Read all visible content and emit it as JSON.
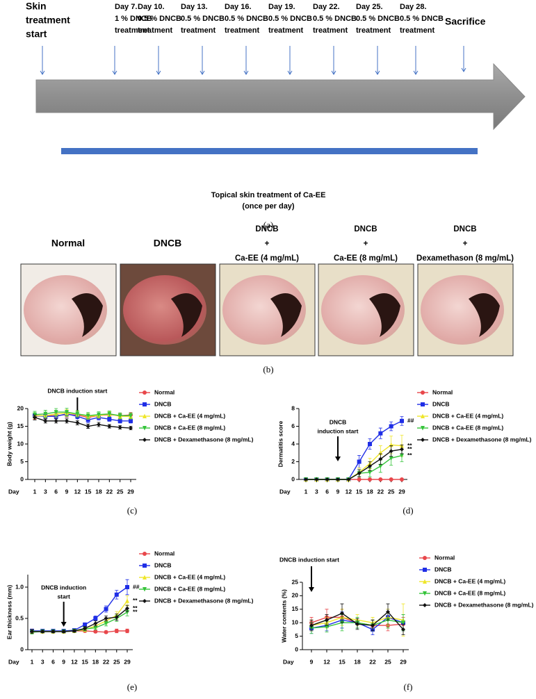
{
  "timeline": {
    "steps": [
      {
        "lines": [
          "Skin",
          "treatment",
          "start"
        ]
      },
      {
        "lines": [
          "Day 7.",
          "1 % DNCB",
          "treatment"
        ]
      },
      {
        "lines": [
          "Day 10.",
          "0.5 % DNCB",
          "treatment"
        ]
      },
      {
        "lines": [
          "Day 13.",
          "0.5 % DNCB",
          "treatment"
        ]
      },
      {
        "lines": [
          "Day 16.",
          "0.5 % DNCB",
          "treatment"
        ]
      },
      {
        "lines": [
          "Day 19.",
          "0.5 % DNCB",
          "treatment"
        ]
      },
      {
        "lines": [
          "Day 22.",
          "0.5 % DNCB",
          "treatment"
        ]
      },
      {
        "lines": [
          "Day 25.",
          "0.5 % DNCB",
          "treatment"
        ]
      },
      {
        "lines": [
          "Day 28.",
          "0.5 % DNCB",
          "treatment"
        ]
      },
      {
        "lines": [
          "Sacrifice"
        ]
      }
    ],
    "bar_label": [
      "Topical skin treatment of Ca-EE",
      "(once per day)"
    ],
    "caption": "(a)"
  },
  "photos": {
    "items": [
      {
        "lines": [
          "Normal"
        ]
      },
      {
        "lines": [
          "DNCB"
        ]
      },
      {
        "lines": [
          "DNCB",
          "+",
          "Ca-EE (4 mg/mL)"
        ]
      },
      {
        "lines": [
          "DNCB",
          "+",
          "Ca-EE (8 mg/mL)"
        ]
      },
      {
        "lines": [
          "DNCB",
          "+",
          "Dexamethason (8 mg/mL)"
        ]
      }
    ],
    "caption": "(b)"
  },
  "chart_data": [
    {
      "type": "line",
      "caption": "(c)",
      "ylabel": "Body weight (g)",
      "xlabel": "Day",
      "annotation": [
        "DNCB induction start"
      ],
      "categories": [
        "1",
        "3",
        "6",
        "9",
        "12",
        "15",
        "18",
        "22",
        "25",
        "29"
      ],
      "ylim": [
        0,
        20
      ],
      "yticks": [
        0,
        5,
        10,
        15,
        20
      ],
      "legend": "right",
      "series": [
        {
          "name": "Normal",
          "color": "#e8474b",
          "marker": "circle",
          "values": [
            17.8,
            18,
            18,
            18.3,
            18.2,
            17.5,
            18,
            18.3,
            18,
            18.2
          ],
          "errors": [
            0.8,
            0.6,
            0.7,
            0.8,
            0.7,
            0.6,
            0.7,
            0.6,
            0.6,
            0.7
          ]
        },
        {
          "name": "DNCB",
          "color": "#1f2ee6",
          "marker": "square",
          "values": [
            18,
            17.8,
            17.8,
            18.5,
            17.8,
            16.8,
            17.5,
            17,
            16.5,
            16.5
          ],
          "errors": [
            0.7,
            0.8,
            0.7,
            0.9,
            0.7,
            0.8,
            0.7,
            0.6,
            0.6,
            0.6
          ]
        },
        {
          "name": "DNCB + Ca-EE (4 mg/mL)",
          "color": "#efe62a",
          "marker": "triangle",
          "values": [
            18,
            18,
            18.5,
            18.7,
            18.5,
            17.8,
            18,
            18.5,
            17.8,
            17.8
          ],
          "errors": [
            0.8,
            0.9,
            0.9,
            1,
            0.8,
            0.8,
            0.7,
            0.7,
            0.7,
            0.7
          ]
        },
        {
          "name": "DNCB + Ca-EE (8 mg/mL)",
          "color": "#35c43a",
          "marker": "triangle-down",
          "values": [
            18.3,
            18.5,
            19,
            19,
            18.5,
            18,
            18.3,
            18.5,
            18,
            18
          ],
          "errors": [
            0.9,
            1,
            1,
            1.1,
            0.9,
            0.9,
            0.8,
            0.8,
            0.8,
            0.8
          ]
        },
        {
          "name": "DNCB + Dexamethasone (8 mg/mL)",
          "color": "#111111",
          "marker": "diamond",
          "values": [
            17.5,
            16.5,
            16.5,
            16.5,
            16,
            15,
            15.5,
            15,
            14.7,
            14.5
          ],
          "errors": [
            0.7,
            0.6,
            0.6,
            0.6,
            0.6,
            0.6,
            0.6,
            0.5,
            0.5,
            0.5
          ]
        }
      ]
    },
    {
      "type": "line",
      "caption": "(d)",
      "ylabel": "Dermatitis score",
      "xlabel": "Day",
      "annotation": [
        "DNCB",
        "induction start"
      ],
      "categories": [
        "1",
        "3",
        "6",
        "9",
        "12",
        "15",
        "18",
        "22",
        "25",
        "29"
      ],
      "ylim": [
        0,
        8
      ],
      "yticks": [
        0,
        2,
        4,
        6,
        8
      ],
      "legend": "right",
      "series": [
        {
          "name": "Normal",
          "color": "#e8474b",
          "marker": "circle",
          "values": [
            0,
            0,
            0,
            0,
            0,
            0,
            0,
            0,
            0,
            0
          ],
          "errors": [
            0,
            0,
            0,
            0,
            0,
            0,
            0,
            0,
            0,
            0
          ]
        },
        {
          "name": "DNCB",
          "color": "#1f2ee6",
          "marker": "square",
          "values": [
            0,
            0,
            0,
            0,
            0,
            2,
            4,
            5.2,
            6,
            6.6
          ],
          "errors": [
            0,
            0,
            0,
            0,
            0,
            0.7,
            0.6,
            0.6,
            0.5,
            0.5
          ],
          "end_label": "##"
        },
        {
          "name": "DNCB + Ca-EE (4 mg/mL)",
          "color": "#efe62a",
          "marker": "triangle",
          "values": [
            0,
            0,
            0,
            0,
            0,
            0.8,
            1.8,
            3,
            3.9,
            3.8
          ],
          "errors": [
            0,
            0,
            0,
            0,
            0,
            0.5,
            0.6,
            0.8,
            1,
            1.2
          ],
          "end_label": "**"
        },
        {
          "name": "DNCB + Ca-EE (8 mg/mL)",
          "color": "#35c43a",
          "marker": "triangle-down",
          "values": [
            0,
            0,
            0,
            0,
            0,
            0.7,
            0.8,
            1.5,
            2.4,
            2.7
          ],
          "errors": [
            0,
            0,
            0,
            0,
            0,
            0.4,
            0.5,
            0.7,
            0.8,
            0.7
          ],
          "end_label": "**"
        },
        {
          "name": "DNCB + Dexamethasone (8 mg/mL)",
          "color": "#111111",
          "marker": "diamond",
          "values": [
            0,
            0,
            0,
            0,
            0,
            0.7,
            1.5,
            2.3,
            3.2,
            3.4
          ],
          "errors": [
            0,
            0,
            0,
            0,
            0,
            0.4,
            0.5,
            0.6,
            0.6,
            0.5
          ],
          "end_label": "**"
        }
      ]
    },
    {
      "type": "line",
      "caption": "(e)",
      "ylabel": "Ear thickness (mm)",
      "xlabel": "Day",
      "annotation": [
        "DNCB induction",
        "start"
      ],
      "categories": [
        "1",
        "3",
        "6",
        "9",
        "12",
        "15",
        "18",
        "22",
        "25",
        "29"
      ],
      "ylim": [
        0,
        1.2
      ],
      "yticks": [
        0,
        0.5,
        {
          "value": 1,
          "label": "1.0"
        }
      ],
      "legend": "right",
      "series": [
        {
          "name": "Normal",
          "color": "#e8474b",
          "marker": "circle",
          "values": [
            0.3,
            0.29,
            0.29,
            0.29,
            0.3,
            0.3,
            0.29,
            0.28,
            0.3,
            0.3
          ],
          "errors": [
            0.03,
            0.02,
            0.02,
            0.02,
            0.02,
            0.02,
            0.02,
            0.02,
            0.03,
            0.03
          ]
        },
        {
          "name": "DNCB",
          "color": "#1f2ee6",
          "marker": "square",
          "values": [
            0.3,
            0.3,
            0.3,
            0.3,
            0.31,
            0.4,
            0.5,
            0.65,
            0.88,
            1
          ],
          "errors": [
            0.03,
            0.02,
            0.02,
            0.02,
            0.02,
            0.03,
            0.04,
            0.05,
            0.07,
            0.12
          ],
          "end_label": "##"
        },
        {
          "name": "DNCB + Ca-EE (4 mg/mL)",
          "color": "#efe62a",
          "marker": "triangle",
          "values": [
            0.29,
            0.29,
            0.29,
            0.29,
            0.3,
            0.32,
            0.38,
            0.46,
            0.55,
            0.78
          ],
          "errors": [
            0.03,
            0.02,
            0.02,
            0.02,
            0.02,
            0.03,
            0.04,
            0.05,
            0.06,
            0.08
          ],
          "end_label": "**"
        },
        {
          "name": "DNCB + Ca-EE (8 mg/mL)",
          "color": "#35c43a",
          "marker": "triangle-down",
          "values": [
            0.28,
            0.29,
            0.29,
            0.29,
            0.3,
            0.33,
            0.35,
            0.42,
            0.5,
            0.6
          ],
          "errors": [
            0.03,
            0.02,
            0.02,
            0.02,
            0.02,
            0.03,
            0.03,
            0.04,
            0.05,
            0.06
          ],
          "end_label": "**"
        },
        {
          "name": "DNCB + Dexamethasone (8 mg/mL)",
          "color": "#111111",
          "marker": "diamond",
          "values": [
            0.29,
            0.29,
            0.29,
            0.29,
            0.3,
            0.34,
            0.42,
            0.5,
            0.52,
            0.66
          ],
          "errors": [
            0.03,
            0.02,
            0.02,
            0.02,
            0.02,
            0.03,
            0.04,
            0.04,
            0.05,
            0.05
          ],
          "end_label": "**"
        }
      ]
    },
    {
      "type": "line",
      "caption": "(f)",
      "ylabel": "Water contents (%)",
      "xlabel": "Day",
      "annotation": [
        "DNCB induction start"
      ],
      "categories": [
        "9",
        "12",
        "15",
        "18",
        "22",
        "25",
        "29"
      ],
      "ylim": [
        0,
        25
      ],
      "yticks": [
        0,
        5,
        10,
        15,
        20,
        25
      ],
      "legend": "right",
      "series": [
        {
          "name": "Normal",
          "color": "#e8474b",
          "marker": "circle",
          "values": [
            10,
            12,
            12,
            10,
            9,
            9,
            9.5
          ],
          "errors": [
            2,
            3,
            3,
            2,
            2,
            2,
            2.5
          ]
        },
        {
          "name": "DNCB",
          "color": "#1f2ee6",
          "marker": "square",
          "values": [
            8,
            9,
            11,
            10,
            7.5,
            12,
            10
          ],
          "errors": [
            2,
            2,
            3,
            2,
            2,
            3,
            3
          ]
        },
        {
          "name": "DNCB + Ca-EE (4 mg/mL)",
          "color": "#efe62a",
          "marker": "triangle",
          "values": [
            9,
            10,
            12,
            11,
            10,
            12,
            11
          ],
          "errors": [
            2,
            2,
            3,
            2,
            2,
            3,
            6
          ]
        },
        {
          "name": "DNCB + Ca-EE (8 mg/mL)",
          "color": "#35c43a",
          "marker": "triangle-down",
          "values": [
            8,
            8.5,
            10,
            10,
            9,
            11,
            10
          ],
          "errors": [
            2,
            2,
            3,
            2,
            2,
            3,
            3
          ]
        },
        {
          "name": "DNCB + Dexamethasone (8 mg/mL)",
          "color": "#111111",
          "marker": "diamond",
          "values": [
            9,
            11,
            13.5,
            9.5,
            9,
            14,
            7.5
          ],
          "errors": [
            2,
            2,
            3.5,
            2,
            2,
            3,
            2
          ]
        }
      ]
    }
  ]
}
